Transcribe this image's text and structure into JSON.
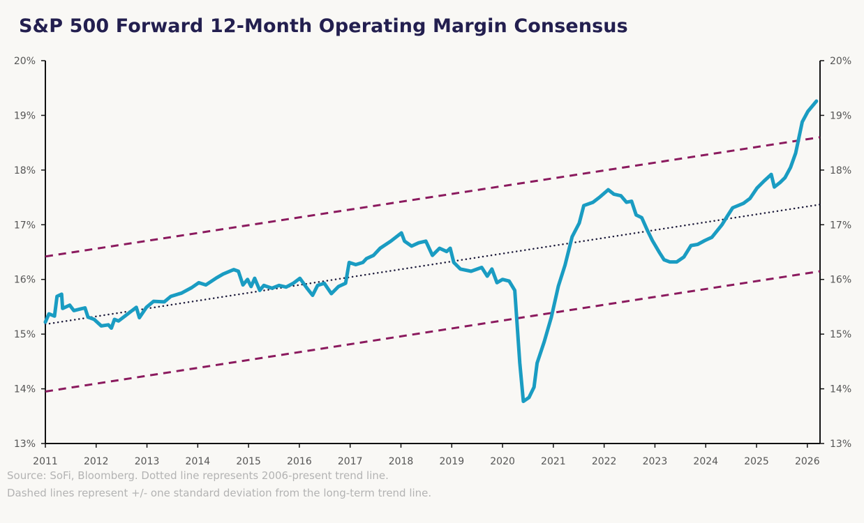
{
  "chart_data": {
    "type": "line",
    "title": "S&P 500 Forward 12-Month Operating Margin Consensus",
    "xlabel": "",
    "ylabel": "",
    "xlim": [
      2011,
      2026.25
    ],
    "ylim": [
      13,
      20
    ],
    "x_ticks": [
      "2011",
      "2012",
      "2013",
      "2014",
      "2015",
      "2016",
      "2017",
      "2018",
      "2019",
      "2020",
      "2021",
      "2022",
      "2023",
      "2024",
      "2025",
      "2026"
    ],
    "y_ticks_left": [
      "13%",
      "14%",
      "15%",
      "16%",
      "17%",
      "18%",
      "19%",
      "20%"
    ],
    "y_ticks_right": [
      "13%",
      "14%",
      "15%",
      "16%",
      "17%",
      "18%",
      "19%",
      "20%"
    ],
    "grid": false,
    "series": [
      {
        "style": "solid",
        "color": "#1a9cc2",
        "points": [
          [
            2011.0,
            15.22
          ],
          [
            2011.07,
            15.37
          ],
          [
            2011.18,
            15.33
          ],
          [
            2011.23,
            15.69
          ],
          [
            2011.32,
            15.73
          ],
          [
            2011.34,
            15.47
          ],
          [
            2011.48,
            15.53
          ],
          [
            2011.56,
            15.43
          ],
          [
            2011.69,
            15.46
          ],
          [
            2011.78,
            15.48
          ],
          [
            2011.84,
            15.31
          ],
          [
            2011.96,
            15.27
          ],
          [
            2012.1,
            15.15
          ],
          [
            2012.24,
            15.17
          ],
          [
            2012.3,
            15.11
          ],
          [
            2012.36,
            15.27
          ],
          [
            2012.44,
            15.24
          ],
          [
            2012.58,
            15.34
          ],
          [
            2012.79,
            15.49
          ],
          [
            2012.85,
            15.3
          ],
          [
            2012.99,
            15.49
          ],
          [
            2013.13,
            15.6
          ],
          [
            2013.34,
            15.59
          ],
          [
            2013.47,
            15.69
          ],
          [
            2013.68,
            15.75
          ],
          [
            2013.88,
            15.85
          ],
          [
            2014.02,
            15.94
          ],
          [
            2014.16,
            15.9
          ],
          [
            2014.37,
            16.03
          ],
          [
            2014.5,
            16.1
          ],
          [
            2014.71,
            16.18
          ],
          [
            2014.8,
            16.15
          ],
          [
            2014.89,
            15.9
          ],
          [
            2014.98,
            16.0
          ],
          [
            2015.05,
            15.87
          ],
          [
            2015.12,
            16.02
          ],
          [
            2015.22,
            15.8
          ],
          [
            2015.3,
            15.89
          ],
          [
            2015.46,
            15.84
          ],
          [
            2015.6,
            15.89
          ],
          [
            2015.74,
            15.86
          ],
          [
            2015.88,
            15.93
          ],
          [
            2016.01,
            16.02
          ],
          [
            2016.15,
            15.84
          ],
          [
            2016.26,
            15.71
          ],
          [
            2016.36,
            15.89
          ],
          [
            2016.49,
            15.93
          ],
          [
            2016.63,
            15.74
          ],
          [
            2016.77,
            15.87
          ],
          [
            2016.91,
            15.93
          ],
          [
            2016.98,
            16.31
          ],
          [
            2017.11,
            16.27
          ],
          [
            2017.25,
            16.31
          ],
          [
            2017.32,
            16.38
          ],
          [
            2017.46,
            16.44
          ],
          [
            2017.59,
            16.57
          ],
          [
            2017.8,
            16.7
          ],
          [
            2018.01,
            16.85
          ],
          [
            2018.07,
            16.7
          ],
          [
            2018.21,
            16.61
          ],
          [
            2018.35,
            16.67
          ],
          [
            2018.49,
            16.7
          ],
          [
            2018.62,
            16.44
          ],
          [
            2018.76,
            16.57
          ],
          [
            2018.9,
            16.51
          ],
          [
            2018.97,
            16.57
          ],
          [
            2019.04,
            16.31
          ],
          [
            2019.17,
            16.19
          ],
          [
            2019.38,
            16.15
          ],
          [
            2019.59,
            16.22
          ],
          [
            2019.7,
            16.06
          ],
          [
            2019.79,
            16.19
          ],
          [
            2019.89,
            15.94
          ],
          [
            2020.0,
            16.0
          ],
          [
            2020.13,
            15.97
          ],
          [
            2020.24,
            15.8
          ],
          [
            2020.34,
            14.47
          ],
          [
            2020.41,
            13.77
          ],
          [
            2020.52,
            13.84
          ],
          [
            2020.62,
            14.03
          ],
          [
            2020.68,
            14.47
          ],
          [
            2020.82,
            14.86
          ],
          [
            2020.96,
            15.31
          ],
          [
            2021.1,
            15.88
          ],
          [
            2021.23,
            16.26
          ],
          [
            2021.37,
            16.78
          ],
          [
            2021.51,
            17.03
          ],
          [
            2021.6,
            17.35
          ],
          [
            2021.78,
            17.41
          ],
          [
            2021.92,
            17.51
          ],
          [
            2022.08,
            17.64
          ],
          [
            2022.19,
            17.56
          ],
          [
            2022.33,
            17.53
          ],
          [
            2022.44,
            17.41
          ],
          [
            2022.54,
            17.43
          ],
          [
            2022.63,
            17.18
          ],
          [
            2022.74,
            17.13
          ],
          [
            2022.85,
            16.9
          ],
          [
            2022.95,
            16.71
          ],
          [
            2023.09,
            16.49
          ],
          [
            2023.18,
            16.36
          ],
          [
            2023.29,
            16.32
          ],
          [
            2023.43,
            16.32
          ],
          [
            2023.57,
            16.41
          ],
          [
            2023.71,
            16.62
          ],
          [
            2023.84,
            16.64
          ],
          [
            2023.98,
            16.71
          ],
          [
            2024.12,
            16.77
          ],
          [
            2024.32,
            17.0
          ],
          [
            2024.42,
            17.15
          ],
          [
            2024.53,
            17.31
          ],
          [
            2024.74,
            17.39
          ],
          [
            2024.87,
            17.48
          ],
          [
            2025.01,
            17.67
          ],
          [
            2025.15,
            17.8
          ],
          [
            2025.29,
            17.92
          ],
          [
            2025.35,
            17.69
          ],
          [
            2025.46,
            17.77
          ],
          [
            2025.56,
            17.86
          ],
          [
            2025.67,
            18.05
          ],
          [
            2025.77,
            18.31
          ],
          [
            2025.84,
            18.62
          ],
          [
            2025.9,
            18.88
          ],
          [
            2026.01,
            19.07
          ],
          [
            2026.18,
            19.26
          ]
        ]
      },
      {
        "style": "dotted",
        "color": "#1c1a3a",
        "points": [
          [
            2011.0,
            15.18
          ],
          [
            2026.25,
            17.37
          ]
        ]
      },
      {
        "style": "dashed",
        "color": "#8b1a5e",
        "points": [
          [
            2011.0,
            16.42
          ],
          [
            2026.25,
            18.6
          ]
        ]
      },
      {
        "style": "dashed",
        "color": "#8b1a5e",
        "points": [
          [
            2011.0,
            13.95
          ],
          [
            2026.25,
            16.15
          ]
        ]
      }
    ]
  },
  "notes": {
    "line1": "Source: SoFi, Bloomberg. Dotted line represents 2006-present trend line.",
    "line2": "Dashed lines represent +/- one standard deviation from the long-term trend line."
  }
}
